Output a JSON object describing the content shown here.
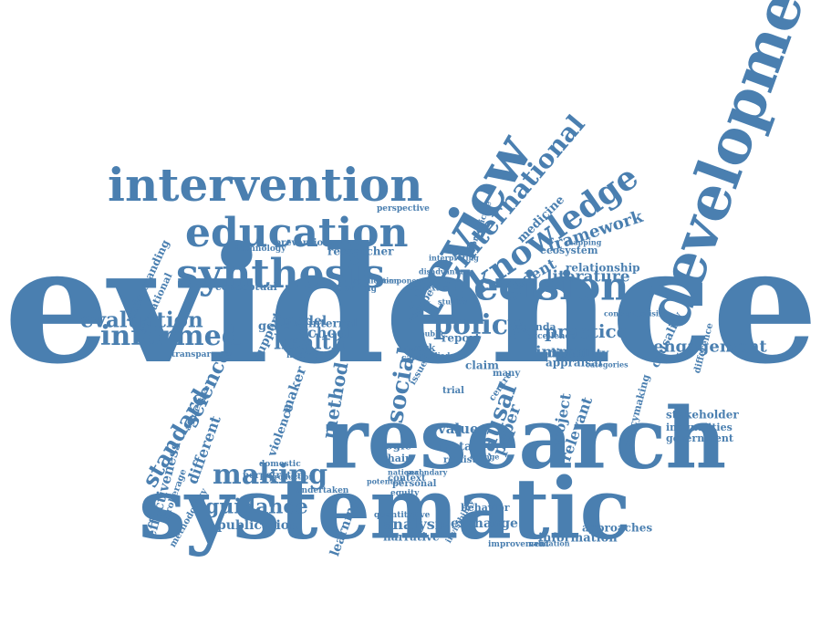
{
  "colors": {
    "word": "#4a7fb0",
    "background": "#ffffff"
  },
  "words": [
    "evidence",
    "systematic",
    "research",
    "development",
    "review",
    "intervention",
    "education",
    "synthesis",
    "decision",
    "policy",
    "knowledge",
    "international",
    "informed",
    "evaluation",
    "health",
    "making",
    "guidance",
    "standard",
    "engagement",
    "publication",
    "framework",
    "literature",
    "practice",
    "impact",
    "analysis",
    "exchange",
    "information",
    "approaches",
    "student",
    "relationship",
    "social",
    "method",
    "school",
    "model",
    "science",
    "different",
    "effectiveness",
    "causal",
    "paper",
    "project",
    "relevant",
    "stakeholder",
    "inequalities",
    "government",
    "causality",
    "difference",
    "medicine",
    "biomedicine",
    "ecosystem",
    "disability",
    "appraisal",
    "excellence",
    "report",
    "claim",
    "trial",
    "value",
    "meta",
    "logic",
    "chain",
    "realist",
    "narrative",
    "learning",
    "behavior",
    "perpetrator",
    "violence",
    "maker",
    "support",
    "conceptual",
    "researcher",
    "prevention",
    "technology",
    "perspective",
    "general",
    "internal",
    "planning",
    "transparency",
    "understanding",
    "educational",
    "brokerage",
    "aggressive",
    "policymaking",
    "context",
    "equity",
    "production",
    "domestic",
    "undertaken",
    "methodology",
    "work",
    "europe",
    "issue",
    "care",
    "public",
    "agenda",
    "many",
    "centre",
    "quantitative",
    "improvement",
    "personal",
    "invisibility",
    "finding",
    "national",
    "secondary",
    "potential",
    "validation",
    "conceptualising",
    "disadvantage",
    "component",
    "application",
    "contextual",
    "studies",
    "interpreting",
    "categories",
    "mapping",
    "change",
    "studied"
  ]
}
